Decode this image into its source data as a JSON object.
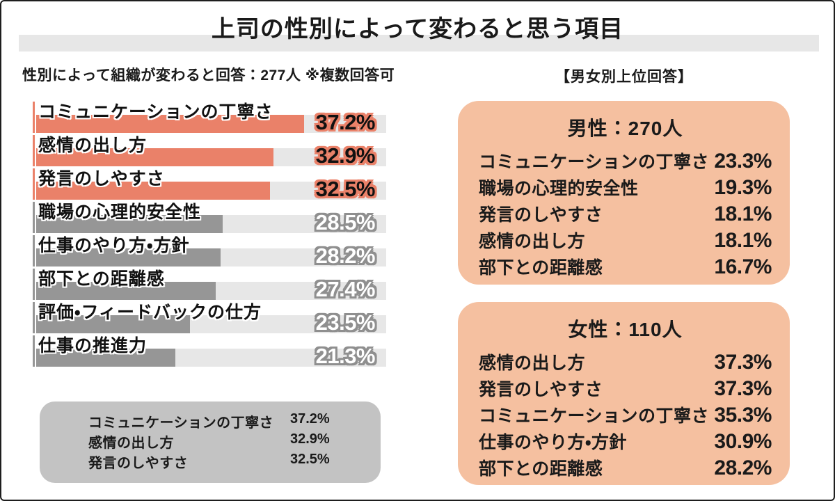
{
  "title": "上司の性別によって変わると思う項目",
  "left": {
    "note": "性別によって組織が変わると回答：277人 ※複数回答可",
    "summary_box": {
      "rows": [
        {
          "label": "コミュニケーションの丁寧さ",
          "value": "37.2%"
        },
        {
          "label": "感情の出し方",
          "value": "32.9%"
        },
        {
          "label": "発言のしやすさ",
          "value": "32.5%"
        }
      ]
    }
  },
  "right": {
    "header": "【男女別上位回答】",
    "boxes": [
      {
        "title": "男性：270人",
        "rows": [
          {
            "label": "コミュニケーションの丁寧さ",
            "value": "23.3%"
          },
          {
            "label": "職場の心理的安全性",
            "value": "19.3%"
          },
          {
            "label": "発言のしやすさ",
            "value": "18.1%"
          },
          {
            "label": "感情の出し方",
            "value": "18.1%"
          },
          {
            "label": "部下との距離感",
            "value": "16.7%"
          }
        ]
      },
      {
        "title": "女性：110人",
        "rows": [
          {
            "label": "感情の出し方",
            "value": "37.3%"
          },
          {
            "label": "発言のしやすさ",
            "value": "37.3%"
          },
          {
            "label": "コミュニケーションの丁寧さ",
            "value": "35.3%"
          },
          {
            "label": "仕事のやり方・方針",
            "value": "30.9%"
          },
          {
            "label": "部下との距離感",
            "value": "28.2%"
          }
        ]
      }
    ]
  },
  "chart_data": {
    "type": "bar",
    "orientation": "horizontal",
    "title": "上司の性別によって変わると思う項目",
    "subtitle": "性別によって組織が変わると回答：277人 ※複数回答可",
    "unit": "%",
    "categories": [
      "コミュニケーションの丁寧さ",
      "感情の出し方",
      "発言のしやすさ",
      "職場の心理的安全性",
      "仕事のやり方・方針",
      "部下との距離感",
      "評価・フィードバックの仕方",
      "仕事の推進力"
    ],
    "values": [
      37.2,
      32.9,
      32.5,
      28.5,
      28.2,
      27.4,
      23.5,
      21.3
    ],
    "highlight_top_n": 3,
    "xlim": [
      0,
      49
    ],
    "grid": false,
    "legend": false,
    "colors": {
      "highlight": "#EA8169",
      "normal": "#969696",
      "track": "#E7E7E7",
      "panel_peach": "#F5C0A0",
      "panel_gray": "#C3C3C3",
      "band_gray": "#E7E7E7"
    }
  }
}
